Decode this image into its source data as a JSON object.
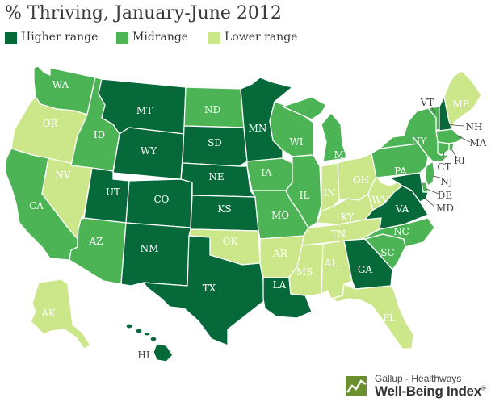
{
  "title": "% Thriving, January-June 2012",
  "legend": [
    {
      "label": "Higher range",
      "color": "#05693a"
    },
    {
      "label": "Midrange",
      "color": "#4db456"
    },
    {
      "label": "Lower range",
      "color": "#cbe78a"
    }
  ],
  "colors": {
    "higher": "#05693a",
    "mid": "#4db456",
    "lower": "#cbe78a"
  },
  "states": [
    {
      "code": "WA",
      "range": "mid"
    },
    {
      "code": "OR",
      "range": "lower"
    },
    {
      "code": "CA",
      "range": "mid"
    },
    {
      "code": "NV",
      "range": "lower"
    },
    {
      "code": "ID",
      "range": "mid"
    },
    {
      "code": "MT",
      "range": "higher"
    },
    {
      "code": "WY",
      "range": "higher"
    },
    {
      "code": "UT",
      "range": "higher"
    },
    {
      "code": "AZ",
      "range": "mid"
    },
    {
      "code": "CO",
      "range": "higher"
    },
    {
      "code": "NM",
      "range": "higher"
    },
    {
      "code": "ND",
      "range": "mid"
    },
    {
      "code": "SD",
      "range": "higher"
    },
    {
      "code": "NE",
      "range": "higher"
    },
    {
      "code": "KS",
      "range": "higher"
    },
    {
      "code": "OK",
      "range": "lower"
    },
    {
      "code": "TX",
      "range": "higher"
    },
    {
      "code": "MN",
      "range": "higher"
    },
    {
      "code": "IA",
      "range": "mid"
    },
    {
      "code": "MO",
      "range": "mid"
    },
    {
      "code": "AR",
      "range": "lower"
    },
    {
      "code": "LA",
      "range": "higher"
    },
    {
      "code": "WI",
      "range": "mid"
    },
    {
      "code": "IL",
      "range": "mid"
    },
    {
      "code": "MI",
      "range": "mid"
    },
    {
      "code": "IN",
      "range": "lower"
    },
    {
      "code": "OH",
      "range": "lower"
    },
    {
      "code": "KY",
      "range": "lower"
    },
    {
      "code": "TN",
      "range": "lower"
    },
    {
      "code": "MS",
      "range": "lower"
    },
    {
      "code": "AL",
      "range": "lower"
    },
    {
      "code": "GA",
      "range": "higher"
    },
    {
      "code": "FL",
      "range": "lower"
    },
    {
      "code": "SC",
      "range": "mid"
    },
    {
      "code": "NC",
      "range": "mid"
    },
    {
      "code": "VA",
      "range": "higher"
    },
    {
      "code": "WV",
      "range": "lower"
    },
    {
      "code": "PA",
      "range": "mid"
    },
    {
      "code": "NY",
      "range": "mid"
    },
    {
      "code": "VT",
      "range": "mid"
    },
    {
      "code": "NH",
      "range": "higher"
    },
    {
      "code": "ME",
      "range": "lower"
    },
    {
      "code": "MA",
      "range": "mid"
    },
    {
      "code": "RI",
      "range": "mid"
    },
    {
      "code": "CT",
      "range": "mid"
    },
    {
      "code": "NJ",
      "range": "mid"
    },
    {
      "code": "DE",
      "range": "mid"
    },
    {
      "code": "MD",
      "range": "higher"
    },
    {
      "code": "AK",
      "range": "lower"
    },
    {
      "code": "HI",
      "range": "higher"
    }
  ],
  "logo": {
    "line1": "Gallup - Healthways",
    "line2": "Well-Being Index",
    "trademark": "®"
  }
}
